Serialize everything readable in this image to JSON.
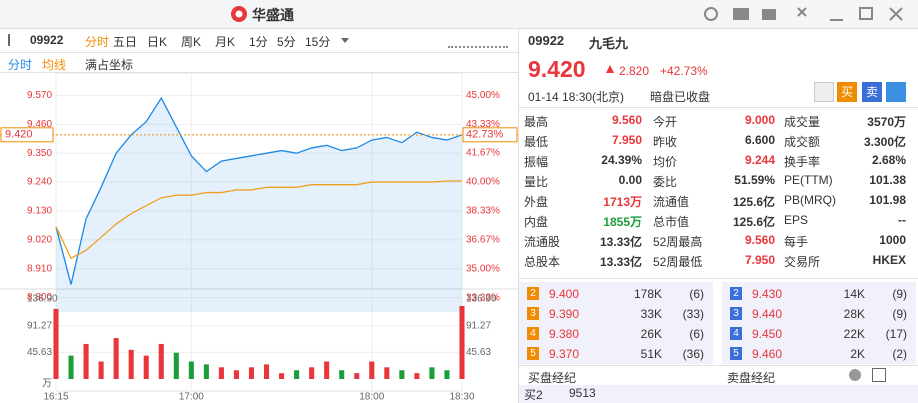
{
  "header": {
    "logo": "华盛通"
  },
  "toolbar": {
    "code": "09922",
    "tabs": [
      "分时",
      "五日",
      "日K",
      "周K",
      "月K",
      "1分",
      "5分",
      "15分"
    ],
    "active": 0
  },
  "subtabs": [
    "分时",
    "均线",
    "满占坐标"
  ],
  "chart_data": {
    "type": "line",
    "x": [
      "16:15",
      "16:20",
      "16:25",
      "16:30",
      "16:35",
      "16:40",
      "16:45",
      "16:50",
      "16:55",
      "17:00",
      "17:05",
      "17:10",
      "17:15",
      "17:20",
      "17:25",
      "17:30",
      "17:35",
      "17:40",
      "17:45",
      "17:50",
      "17:55",
      "18:00",
      "18:05",
      "18:10",
      "18:15",
      "18:20",
      "18:25",
      "18:30"
    ],
    "xticks": [
      "16:15",
      "17:00",
      "18:00",
      "18:30"
    ],
    "series": [
      {
        "name": "分时",
        "color": "#1e88e5",
        "values": [
          9.07,
          8.85,
          9.1,
          9.22,
          9.35,
          9.42,
          9.47,
          9.56,
          9.45,
          9.34,
          9.28,
          9.32,
          9.33,
          9.34,
          9.35,
          9.36,
          9.35,
          9.37,
          9.38,
          9.36,
          9.37,
          9.4,
          9.41,
          9.39,
          9.43,
          9.41,
          9.4,
          9.42
        ]
      },
      {
        "name": "均线",
        "color": "#f0a020",
        "values": [
          9.07,
          8.95,
          8.98,
          9.03,
          9.08,
          9.12,
          9.15,
          9.18,
          9.19,
          9.19,
          9.2,
          9.2,
          9.21,
          9.21,
          9.22,
          9.22,
          9.22,
          9.23,
          9.23,
          9.23,
          9.23,
          9.24,
          9.24,
          9.24,
          9.24,
          9.24,
          9.244,
          9.244
        ]
      }
    ],
    "ylim": [
      8.745,
      9.625
    ],
    "yticks": [
      {
        "value": 9.57,
        "label": "9.570"
      },
      {
        "value": 9.46,
        "label": "9.460"
      },
      {
        "value": 9.35,
        "label": "9.350"
      },
      {
        "value": 9.24,
        "label": "9.240"
      },
      {
        "value": 9.13,
        "label": "9.130"
      },
      {
        "value": 9.02,
        "label": "9.020"
      },
      {
        "value": 8.91,
        "label": "8.910"
      },
      {
        "value": 8.8,
        "label": "8.800"
      }
    ],
    "y2lim": [
      32.5,
      45.83
    ],
    "y2ticks": [
      {
        "value": 45,
        "label": "45.00%"
      },
      {
        "value": 43.33,
        "label": "43.33%"
      },
      {
        "value": 41.67,
        "label": "41.67%"
      },
      {
        "value": 40,
        "label": "40.00%"
      },
      {
        "value": 38.33,
        "label": "38.33%"
      },
      {
        "value": 36.67,
        "label": "36.67%"
      },
      {
        "value": 35,
        "label": "35.00%"
      },
      {
        "value": 33.33,
        "label": "33.33%"
      }
    ],
    "current": {
      "value": 9.42,
      "label": "9.420",
      "pct_label": "42.73%"
    },
    "volume": {
      "unit": "万",
      "ylim": [
        0,
        136.9
      ],
      "yticks": [
        {
          "value": 136.9,
          "label": "136.90"
        },
        91.27,
        45.63
      ],
      "values": [
        120,
        40,
        60,
        30,
        70,
        50,
        40,
        60,
        45,
        30,
        25,
        20,
        15,
        20,
        25,
        10,
        15,
        20,
        30,
        15,
        10,
        30,
        20,
        15,
        10,
        20,
        15,
        125
      ]
    }
  },
  "quote": {
    "code": "09922",
    "name": "九毛九",
    "price": "9.420",
    "change": "2.820",
    "change_pct": "+42.73%",
    "time": "01-14 18:30(北京)",
    "status": "暗盘已收盘",
    "buy": "买",
    "sell": "卖"
  },
  "stats": [
    [
      {
        "label": "最高",
        "value": "9.560",
        "color": "#e8363a"
      },
      {
        "label": "今开",
        "value": "9.000",
        "color": "#e8363a"
      },
      {
        "label": "成交量",
        "value": "3570万"
      }
    ],
    [
      {
        "label": "最低",
        "value": "7.950",
        "color": "#e8363a"
      },
      {
        "label": "昨收",
        "value": "6.600"
      },
      {
        "label": "成交额",
        "value": "3.300亿"
      }
    ],
    [
      {
        "label": "振幅",
        "value": "24.39%"
      },
      {
        "label": "均价",
        "value": "9.244",
        "color": "#e8363a"
      },
      {
        "label": "换手率",
        "value": "2.68%"
      }
    ],
    [
      {
        "label": "量比",
        "value": "0.00"
      },
      {
        "label": "委比",
        "value": "51.59%"
      },
      {
        "label": "PE(TTM)",
        "value": "101.38"
      }
    ],
    [
      {
        "label": "外盘",
        "value": "1713万",
        "color": "#e8363a"
      },
      {
        "label": "流通值",
        "value": "125.6亿"
      },
      {
        "label": "PB(MRQ)",
        "value": "101.98"
      }
    ],
    [
      {
        "label": "内盘",
        "value": "1855万",
        "color": "#1a9e3a"
      },
      {
        "label": "总市值",
        "value": "125.6亿"
      },
      {
        "label": "EPS",
        "value": "--"
      }
    ],
    [
      {
        "label": "流通股",
        "value": "13.33亿"
      },
      {
        "label": "52周最高",
        "value": "9.560",
        "color": "#e8363a"
      },
      {
        "label": "每手",
        "value": "1000"
      }
    ],
    [
      {
        "label": "总股本",
        "value": "13.33亿"
      },
      {
        "label": "52周最低",
        "value": "7.950",
        "color": "#e8363a"
      },
      {
        "label": "交易所",
        "value": "HKEX"
      }
    ]
  ],
  "order_book": {
    "bids": [
      [
        "2",
        "9.400",
        "178K",
        "(6)"
      ],
      [
        "3",
        "9.390",
        "33K",
        "(33)"
      ],
      [
        "4",
        "9.380",
        "26K",
        "(6)"
      ],
      [
        "5",
        "9.370",
        "51K",
        "(36)"
      ]
    ],
    "asks": [
      [
        "2",
        "9.430",
        "14K",
        "(9)"
      ],
      [
        "3",
        "9.440",
        "28K",
        "(9)"
      ],
      [
        "4",
        "9.450",
        "22K",
        "(17)"
      ],
      [
        "5",
        "9.460",
        "2K",
        "(2)"
      ]
    ]
  },
  "brokers": {
    "buy_title": "买盘经纪",
    "sell_title": "卖盘经纪",
    "row": [
      "买2",
      "9513"
    ]
  }
}
